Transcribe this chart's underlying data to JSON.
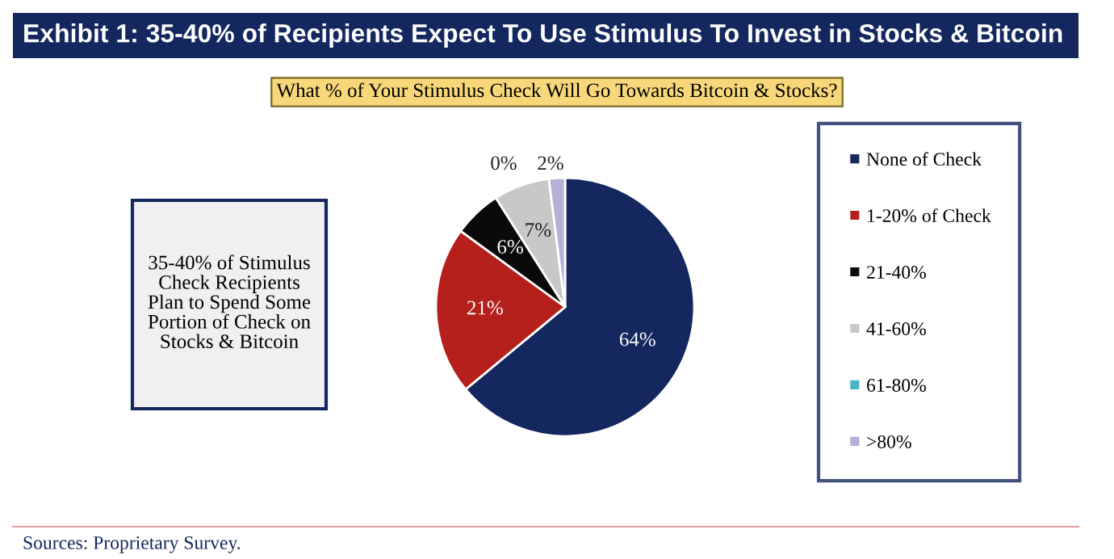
{
  "chart_data": {
    "type": "pie",
    "title": "Exhibit 1: 35-40% of Recipients Expect To Use Stimulus To Invest in Stocks & Bitcoin",
    "subtitle": "What % of Your Stimulus Check Will Go Towards Bitcoin & Stocks?",
    "categories": [
      "None of Check",
      "1-20% of Check",
      "21-40%",
      "41-60%",
      "61-80%",
      ">80%"
    ],
    "values": [
      64,
      21,
      6,
      7,
      0,
      2
    ],
    "colors": [
      "#14275e",
      "#b5201c",
      "#0a0a0a",
      "#c8c8c8",
      "#4ab3c8",
      "#b4b0d6"
    ],
    "value_labels": [
      "64%",
      "21%",
      "6%",
      "7%",
      "0%",
      "2%"
    ],
    "legend": "right",
    "annotations": [
      "35-40% of Stimulus Check Recipients Plan to Spend Some Portion of Check on Stocks & Bitcoin",
      "Sources: Proprietary Survey."
    ]
  }
}
